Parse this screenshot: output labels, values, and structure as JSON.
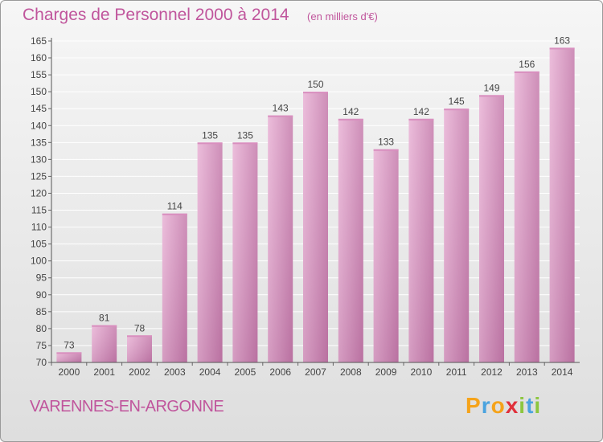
{
  "header": {
    "title": "Charges de Personnel 2000 à 2014",
    "subtitle": "(en milliers d'€)"
  },
  "footer": {
    "commune": "VARENNES-EN-ARGONNE"
  },
  "logo": {
    "letters": [
      "P",
      "r",
      "o",
      "x",
      "i",
      "t",
      "i"
    ],
    "colors": [
      "#f5a31a",
      "#4aa3df",
      "#f5a31a",
      "#e0303b",
      "#8cc63f",
      "#4aa3df",
      "#8cc63f"
    ]
  },
  "chart_data": {
    "type": "bar",
    "categories": [
      "2000",
      "2001",
      "2002",
      "2003",
      "2004",
      "2005",
      "2006",
      "2007",
      "2008",
      "2009",
      "2010",
      "2011",
      "2012",
      "2013",
      "2014"
    ],
    "values": [
      73,
      81,
      78,
      114,
      135,
      135,
      143,
      150,
      142,
      133,
      142,
      145,
      149,
      156,
      163
    ],
    "data_labels": [
      "73",
      "81",
      "78",
      "114",
      "135",
      "135",
      "143",
      "150",
      "142",
      "133",
      "142",
      "145",
      "149",
      "156",
      "163"
    ],
    "yticks": [
      "70",
      "75",
      "80",
      "85",
      "90",
      "95",
      "100",
      "105",
      "110",
      "115",
      "120",
      "125",
      "130",
      "135",
      "140",
      "145",
      "150",
      "155",
      "160",
      "165"
    ],
    "ylim": [
      70,
      165
    ],
    "grid": true,
    "colors": {
      "bar_light": "#e9b4d6",
      "bar_dark": "#c77fae",
      "bar_top": "#d98fbf",
      "grid": "#ffffff",
      "text": "#444444"
    }
  }
}
